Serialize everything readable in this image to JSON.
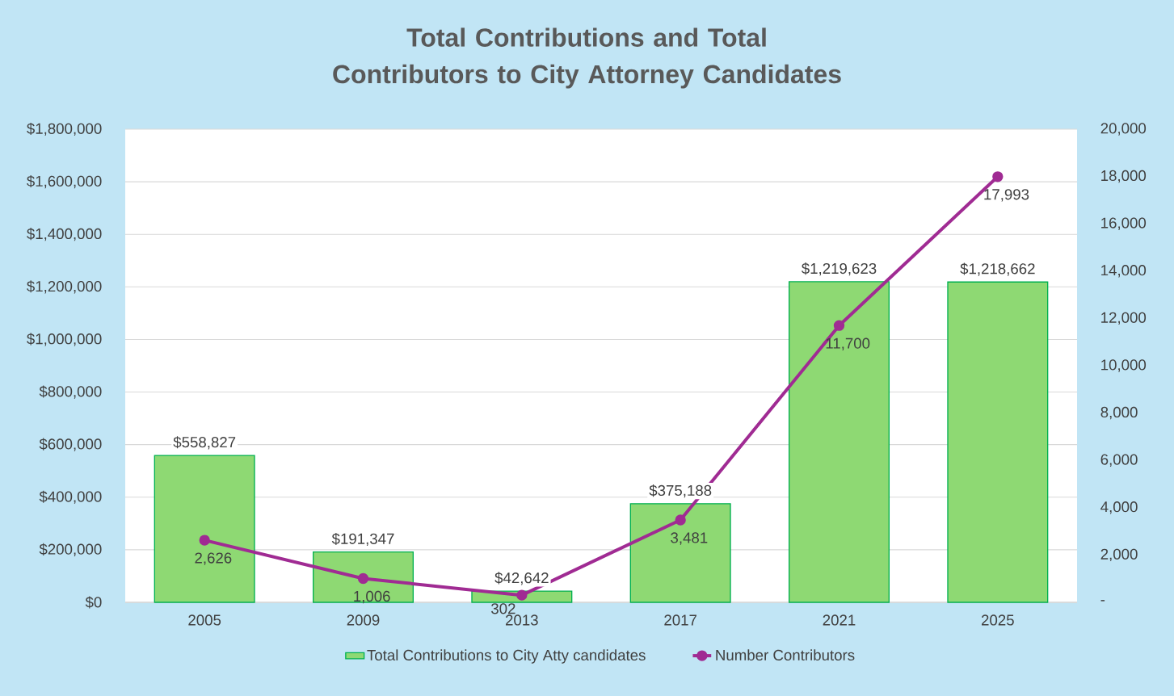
{
  "chart_data": {
    "type": "bar",
    "title": "Total Contributions and Total Contributors to City Attorney Candidates",
    "categories": [
      "2005",
      "2009",
      "2013",
      "2017",
      "2021",
      "2025"
    ],
    "series": [
      {
        "name": "Total Contributions to City Atty candidates",
        "color": "#8ed973",
        "values": [
          558827,
          191347,
          42642,
          375188,
          1219623,
          1218662
        ],
        "value_labels": [
          "$558,827",
          "$191,347",
          "$42,642",
          "$375,188",
          "$1,219,623",
          "$1,218,662"
        ]
      },
      {
        "name": "Number Contributors",
        "type": "line",
        "axis": "y2",
        "color": "#a02b93",
        "values": [
          2626,
          1006,
          302,
          3481,
          11700,
          17993
        ],
        "value_labels": [
          "2,626",
          "1,006",
          "302",
          "3,481",
          "11,700",
          "17,993"
        ]
      }
    ],
    "ylim": [
      0,
      1800000
    ],
    "yticks": [
      {
        "value": 0,
        "label": "$0"
      },
      {
        "value": 200000,
        "label": "$200,000"
      },
      {
        "value": 400000,
        "label": "$400,000"
      },
      {
        "value": 600000,
        "label": "$600,000"
      },
      {
        "value": 800000,
        "label": "$800,000"
      },
      {
        "value": 1000000,
        "label": "$1,000,000"
      },
      {
        "value": 1200000,
        "label": "$1,200,000"
      },
      {
        "value": 1400000,
        "label": "$1,400,000"
      },
      {
        "value": 1600000,
        "label": "$1,600,000"
      },
      {
        "value": 1800000,
        "label": "$1,800,000"
      }
    ],
    "y2lim": [
      0,
      20000
    ],
    "y2ticks": [
      {
        "value": 0,
        "label": "-"
      },
      {
        "value": 2000,
        "label": "2,000"
      },
      {
        "value": 4000,
        "label": "4,000"
      },
      {
        "value": 6000,
        "label": "6,000"
      },
      {
        "value": 8000,
        "label": "8,000"
      },
      {
        "value": 10000,
        "label": "10,000"
      },
      {
        "value": 12000,
        "label": "12,000"
      },
      {
        "value": 14000,
        "label": "14,000"
      },
      {
        "value": 16000,
        "label": "16,000"
      },
      {
        "value": 18000,
        "label": "18,000"
      },
      {
        "value": 20000,
        "label": "20,000"
      }
    ],
    "grid": "y",
    "legend": "bottom",
    "marker": "circle"
  }
}
